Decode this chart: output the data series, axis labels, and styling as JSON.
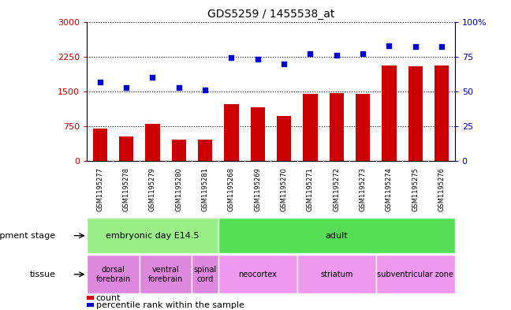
{
  "title": "GDS5259 / 1455538_at",
  "samples": [
    "GSM1195277",
    "GSM1195278",
    "GSM1195279",
    "GSM1195280",
    "GSM1195281",
    "GSM1195268",
    "GSM1195269",
    "GSM1195270",
    "GSM1195271",
    "GSM1195272",
    "GSM1195273",
    "GSM1195274",
    "GSM1195275",
    "GSM1195276"
  ],
  "counts": [
    700,
    530,
    800,
    460,
    460,
    1220,
    1160,
    970,
    1440,
    1470,
    1440,
    2060,
    2050,
    2060
  ],
  "percentiles": [
    57,
    53,
    60,
    53,
    51,
    74,
    73,
    70,
    77,
    76,
    77,
    83,
    82,
    82
  ],
  "ylim_left": [
    0,
    3000
  ],
  "ylim_right": [
    0,
    100
  ],
  "yticks_left": [
    0,
    750,
    1500,
    2250,
    3000
  ],
  "yticks_right": [
    0,
    25,
    50,
    75,
    100
  ],
  "bar_color": "#cc0000",
  "dot_color": "#0000cc",
  "dot_size": 18,
  "background_color": "#ffffff",
  "plot_bg_color": "#ffffff",
  "xtick_bg_color": "#cccccc",
  "dev_stage_groups": [
    {
      "label": "embryonic day E14.5",
      "start": 0,
      "end": 5,
      "color": "#99ee88"
    },
    {
      "label": "adult",
      "start": 5,
      "end": 14,
      "color": "#55dd55"
    }
  ],
  "tissue_groups": [
    {
      "label": "dorsal\nforebrain",
      "start": 0,
      "end": 2,
      "color": "#dd88dd"
    },
    {
      "label": "ventral\nforebrain",
      "start": 2,
      "end": 4,
      "color": "#dd88dd"
    },
    {
      "label": "spinal\ncord",
      "start": 4,
      "end": 5,
      "color": "#dd88dd"
    },
    {
      "label": "neocortex",
      "start": 5,
      "end": 8,
      "color": "#ee99ee"
    },
    {
      "label": "striatum",
      "start": 8,
      "end": 11,
      "color": "#ee99ee"
    },
    {
      "label": "subventricular zone",
      "start": 11,
      "end": 14,
      "color": "#ee99ee"
    }
  ],
  "legend_bar_label": "count",
  "legend_dot_label": "percentile rank within the sample",
  "dev_stage_label": "development stage",
  "tissue_label": "tissue"
}
